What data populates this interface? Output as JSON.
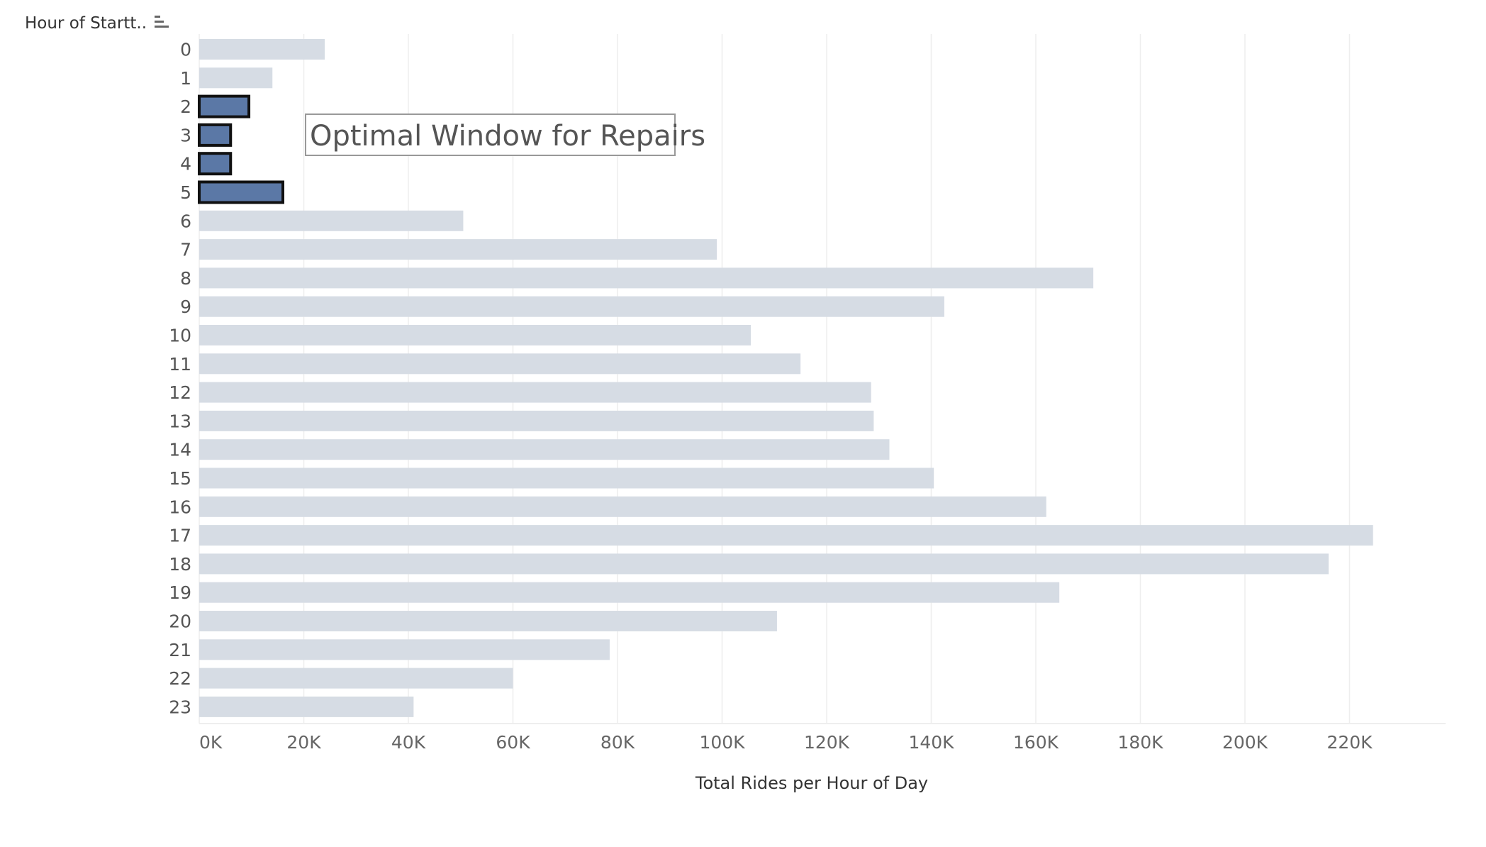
{
  "header": {
    "dimension_title": "Hour of Startt..",
    "sort_icon": "sort-descending-bars-icon"
  },
  "annotation": {
    "text": "Optimal Window for Repairs"
  },
  "colors": {
    "bar_default": "#d6dce4",
    "bar_highlight": "#5b78a6",
    "bar_highlight_border": "#111111",
    "grid": "#eeeeee",
    "annotation_border": "#999999",
    "annotation_fill": "#ffffff"
  },
  "chart_data": {
    "type": "bar",
    "orientation": "horizontal",
    "categories": [
      "0",
      "1",
      "2",
      "3",
      "4",
      "5",
      "6",
      "7",
      "8",
      "9",
      "10",
      "11",
      "12",
      "13",
      "14",
      "15",
      "16",
      "17",
      "18",
      "19",
      "20",
      "21",
      "22",
      "23"
    ],
    "values": [
      24000,
      14000,
      9500,
      6000,
      6000,
      16000,
      50500,
      99000,
      171000,
      142500,
      105500,
      115000,
      128500,
      129000,
      132000,
      140500,
      162000,
      224500,
      216000,
      164500,
      110500,
      78500,
      60000,
      41000
    ],
    "highlighted": [
      "2",
      "3",
      "4",
      "5"
    ],
    "xlabel": "Total Rides per Hour of Day",
    "ylabel": "Hour of Startt..",
    "xlim": [
      0,
      235000
    ],
    "x_ticks": [
      0,
      20000,
      40000,
      60000,
      80000,
      100000,
      120000,
      140000,
      160000,
      180000,
      200000,
      220000
    ],
    "x_tick_labels": [
      "0K",
      "20K",
      "40K",
      "60K",
      "80K",
      "100K",
      "120K",
      "140K",
      "160K",
      "180K",
      "200K",
      "220K"
    ],
    "grid": true
  }
}
